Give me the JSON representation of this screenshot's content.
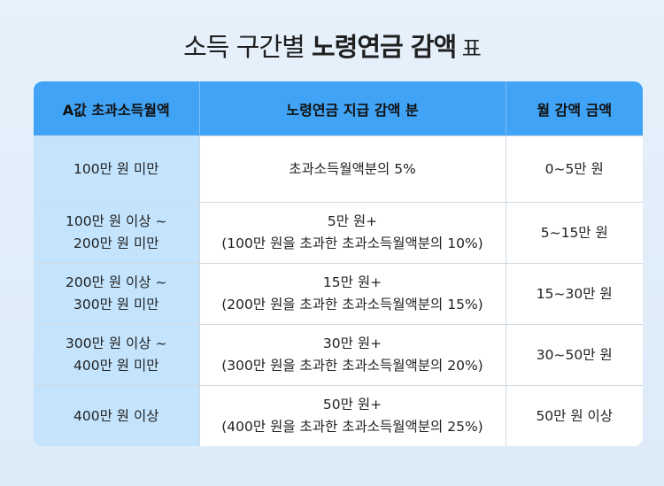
{
  "title": {
    "normal": "소득 구간별 ",
    "bold": "노령연금 감액",
    "suffix": " 표"
  },
  "table": {
    "headers": [
      "A값 초과소득월액",
      "노령연금 지급 감액 분",
      "월 감액 금액"
    ],
    "rows": [
      {
        "income": [
          "100만 원 미만"
        ],
        "reduction": [
          "초과소득월액분의 5%"
        ],
        "amount": "0~5만 원"
      },
      {
        "income": [
          "100만 원 이상 ~",
          "200만 원 미만"
        ],
        "reduction": [
          "5만 원+",
          "(100만 원을 초과한 초과소득월액분의 10%)"
        ],
        "amount": "5~15만 원"
      },
      {
        "income": [
          "200만 원 이상 ~",
          "300만 원 미만"
        ],
        "reduction": [
          "15만 원+",
          "(200만 원을 초과한 초과소득월액분의 15%)"
        ],
        "amount": "15~30만 원"
      },
      {
        "income": [
          "300만 원 이상 ~",
          "400만 원 미만"
        ],
        "reduction": [
          "30만 원+",
          "(300만 원을 초과한 초과소득월액분의 20%)"
        ],
        "amount": "30~50만 원"
      },
      {
        "income": [
          "400만 원 이상"
        ],
        "reduction": [
          "50만 원+",
          "(400만 원을 초과한 초과소득월액분의 25%)"
        ],
        "amount": "50만 원 이상"
      }
    ]
  }
}
